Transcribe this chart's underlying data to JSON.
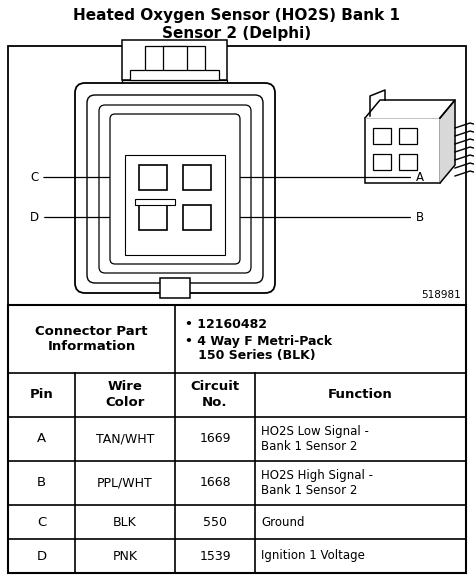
{
  "title_line1": "Heated Oxygen Sensor (HO2S) Bank 1",
  "title_line2": "Sensor 2 (Delphi)",
  "part_number": "518981",
  "connector_label": "Connector Part\nInformation",
  "bullet1": "• 12160482",
  "bullet2": "• 4 Way F Metri-Pack",
  "bullet3": "   150 Series (BLK)",
  "rows": [
    {
      "pin": "A",
      "wire": "TAN/WHT",
      "circuit": "1669",
      "function": "HO2S Low Signal -\nBank 1 Sensor 2"
    },
    {
      "pin": "B",
      "wire": "PPL/WHT",
      "circuit": "1668",
      "function": "HO2S High Signal -\nBank 1 Sensor 2"
    },
    {
      "pin": "C",
      "wire": "BLK",
      "circuit": "550",
      "function": "Ground"
    },
    {
      "pin": "D",
      "wire": "PNK",
      "circuit": "1539",
      "function": "Ignition 1 Voltage"
    }
  ],
  "bg_color": "#ffffff",
  "text_color": "#000000",
  "fig_w": 4.74,
  "fig_h": 5.75,
  "dpi": 100
}
